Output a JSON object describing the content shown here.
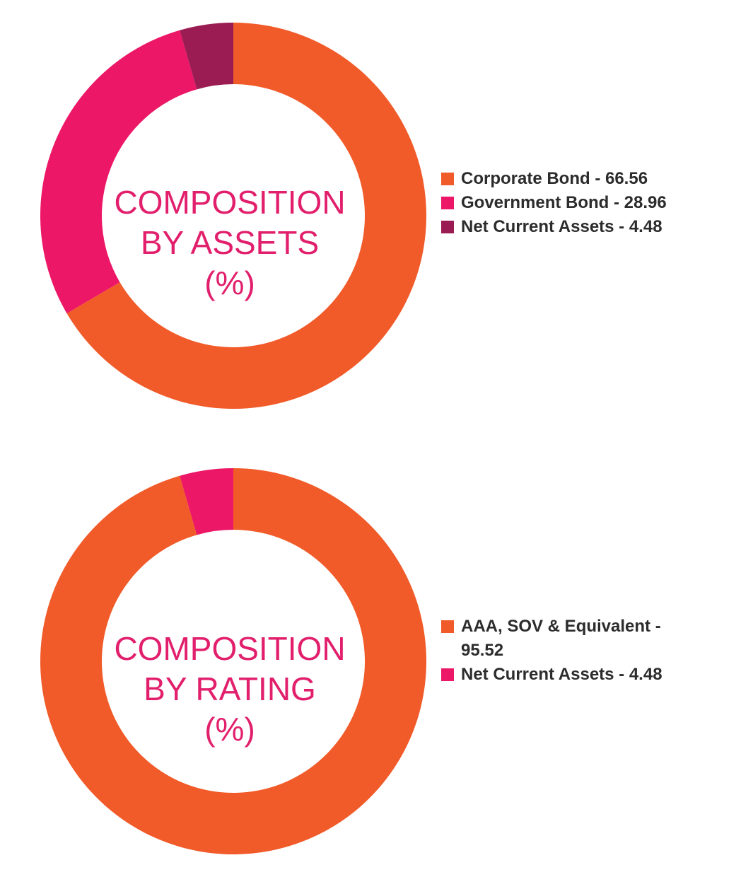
{
  "chart_data": [
    {
      "type": "pie",
      "title_lines": [
        "COMPOSITION",
        "BY ASSETS",
        "(%)"
      ],
      "start_angle_deg": 0,
      "direction": "clockwise",
      "legend_position": "right",
      "slices": [
        {
          "label": "Corporate Bond - 66.56",
          "value": 66.56,
          "color": "#f15a29"
        },
        {
          "label": "Government Bond - 28.96",
          "value": 28.96,
          "color": "#ec1766"
        },
        {
          "label": "Net Current Assets - 4.48",
          "value": 4.48,
          "color": "#9b1b53"
        }
      ]
    },
    {
      "type": "pie",
      "title_lines": [
        "COMPOSITION",
        "BY RATING",
        "(%)"
      ],
      "start_angle_deg": 0,
      "direction": "clockwise",
      "legend_position": "right",
      "slices": [
        {
          "label": "AAA, SOV & Equivalent - 95.52",
          "value": 95.52,
          "color": "#f15a29"
        },
        {
          "label": "Net Current Assets - 4.48",
          "value": 4.48,
          "color": "#ec1766"
        }
      ]
    }
  ]
}
